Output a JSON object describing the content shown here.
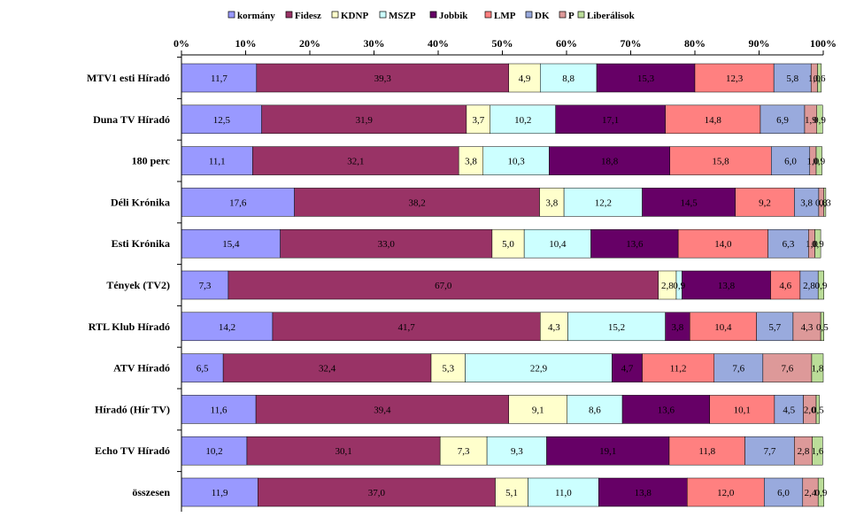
{
  "chart_data": {
    "type": "bar",
    "orientation": "horizontal",
    "stacked": "100%",
    "title": "",
    "xlabel": "",
    "ylabel": "",
    "xlim": [
      0,
      100
    ],
    "x_ticks": [
      "0%",
      "10%",
      "20%",
      "30%",
      "40%",
      "50%",
      "60%",
      "70%",
      "80%",
      "90%",
      "100%"
    ],
    "legend_position": "top",
    "grid": false,
    "categories": [
      "MTV1 esti Híradó",
      "Duna TV Híradó",
      "180 perc",
      "Déli Krónika",
      "Esti Krónika",
      "Tények (TV2)",
      "RTL Klub Híradó",
      "ATV Híradó",
      "Híradó (Hír TV)",
      "Echo TV Híradó",
      "összesen"
    ],
    "series": [
      {
        "name": "kormány",
        "color": "#9999ff",
        "values": [
          11.7,
          12.5,
          11.1,
          17.6,
          15.4,
          7.3,
          14.2,
          6.5,
          11.6,
          10.2,
          11.9
        ],
        "labels": [
          "11,7",
          "12,5",
          "11,1",
          "17,6",
          "15,4",
          "7,3",
          "14,2",
          "6,5",
          "11,6",
          "10,2",
          "11,9"
        ]
      },
      {
        "name": "Fidesz",
        "color": "#993366",
        "values": [
          39.3,
          31.9,
          32.1,
          38.2,
          33.0,
          67.0,
          41.7,
          32.4,
          39.4,
          30.1,
          37.0
        ],
        "labels": [
          "39,3",
          "31,9",
          "32,1",
          "38,2",
          "33,0",
          "67,0",
          "41,7",
          "32,4",
          "39,4",
          "30,1",
          "37,0"
        ]
      },
      {
        "name": "KDNP",
        "color": "#ffffcc",
        "values": [
          4.9,
          3.7,
          3.8,
          3.8,
          5.0,
          2.8,
          4.3,
          5.3,
          9.1,
          7.3,
          5.1
        ],
        "labels": [
          "4,9",
          "3,7",
          "3,8",
          "3,8",
          "5,0",
          "2,8",
          "4,3",
          "5,3",
          "9,1",
          "7,3",
          "5,1"
        ]
      },
      {
        "name": "MSZP",
        "color": "#ccffff",
        "values": [
          8.8,
          10.2,
          10.3,
          12.2,
          10.4,
          0.9,
          15.2,
          22.9,
          8.6,
          9.3,
          11.0
        ],
        "labels": [
          "8,8",
          "10,2",
          "10,3",
          "12,2",
          "10,4",
          "0,9",
          "15,2",
          "22,9",
          "8,6",
          "9,3",
          "11,0"
        ]
      },
      {
        "name": "Jobbik",
        "color": "#660066",
        "values": [
          15.3,
          17.1,
          18.8,
          14.5,
          13.6,
          13.8,
          3.8,
          4.7,
          13.6,
          19.1,
          13.8
        ],
        "labels": [
          "15,3",
          "17,1",
          "18,8",
          "14,5",
          "13,6",
          "13,8",
          "3,8",
          "4,7",
          "13,6",
          "19,1",
          "13,8"
        ]
      },
      {
        "name": "LMP",
        "color": "#ff8080",
        "values": [
          12.3,
          14.8,
          15.8,
          9.2,
          14.0,
          4.6,
          10.4,
          11.2,
          10.1,
          11.8,
          12.0
        ],
        "labels": [
          "12,3",
          "14,8",
          "15,8",
          "9,2",
          "14,0",
          "4,6",
          "10,4",
          "11,2",
          "10,1",
          "11,8",
          "12,0"
        ]
      },
      {
        "name": "DK",
        "color": "#99aadd",
        "values": [
          5.8,
          6.9,
          6.0,
          3.8,
          6.3,
          2.8,
          5.7,
          7.6,
          4.5,
          7.7,
          6.0
        ],
        "labels": [
          "5,8",
          "6,9",
          "6,0",
          "3,8",
          "6,3",
          "2,8",
          "5,7",
          "7,6",
          "4,5",
          "7,7",
          "6,0"
        ]
      },
      {
        "name": "P",
        "color": "#dd9999",
        "values": [
          1.0,
          1.9,
          1.0,
          0.8,
          1.0,
          0.0,
          4.3,
          7.6,
          2.0,
          2.8,
          2.4
        ],
        "labels": [
          "1,0",
          "1,9",
          "1,0",
          "0,8",
          "1,0",
          "0,0",
          "4,3",
          "7,6",
          "2,0",
          "2,8",
          "2,4"
        ]
      },
      {
        "name": "Liberálisok",
        "color": "#bbdd99",
        "values": [
          0.6,
          0.9,
          0.9,
          0.3,
          0.9,
          0.9,
          0.5,
          1.8,
          0.5,
          1.6,
          0.9
        ],
        "labels": [
          "0,6",
          "0,9",
          "0,9",
          "0,3",
          "0,9",
          "0,9",
          "0,5",
          "1,8",
          "0,5",
          "1,6",
          "0,9"
        ]
      }
    ]
  }
}
